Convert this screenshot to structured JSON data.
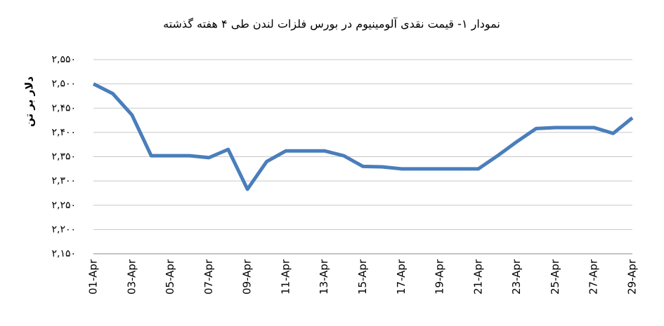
{
  "chart_data": {
    "type": "line",
    "title": "نمودار ۱- قیمت نقدی آلومینیوم در بورس فلزات لندن طی ۴ هفته گذشته",
    "y_label": "دلار بر تن",
    "categories": [
      "01-Apr",
      null,
      "03-Apr",
      null,
      "05-Apr",
      null,
      "07-Apr",
      null,
      "09-Apr",
      null,
      "11-Apr",
      null,
      "13-Apr",
      null,
      "15-Apr",
      null,
      "17-Apr",
      null,
      "19-Apr",
      null,
      "21-Apr",
      null,
      "23-Apr",
      null,
      "25-Apr",
      null,
      "27-Apr",
      null,
      "29-Apr"
    ],
    "series": [
      {
        "color": "#4a7ebb",
        "values": [
          2500,
          2480,
          2436,
          2352,
          2352,
          2352,
          2348,
          2365,
          2283,
          2340,
          2362,
          2362,
          2362,
          2352,
          2330,
          2329,
          2325,
          2325,
          2325,
          2325,
          2325,
          2352,
          2381,
          2408,
          2410,
          2410,
          2410,
          2398,
          2430
        ]
      }
    ],
    "ylim": [
      2150,
      2550
    ],
    "yticks": [
      {
        "value": 2150,
        "label": "۲,۱۵۰"
      },
      {
        "value": 2200,
        "label": "۲,۲۰۰"
      },
      {
        "value": 2250,
        "label": "۲,۲۵۰"
      },
      {
        "value": 2300,
        "label": "۲,۳۰۰"
      },
      {
        "value": 2350,
        "label": "۲,۳۵۰"
      },
      {
        "value": 2400,
        "label": "۲,۴۰۰"
      },
      {
        "value": 2450,
        "label": "۲,۴۵۰"
      },
      {
        "value": 2500,
        "label": "۲,۵۰۰"
      },
      {
        "value": 2550,
        "label": "۲,۵۵۰"
      }
    ],
    "grid": true
  }
}
